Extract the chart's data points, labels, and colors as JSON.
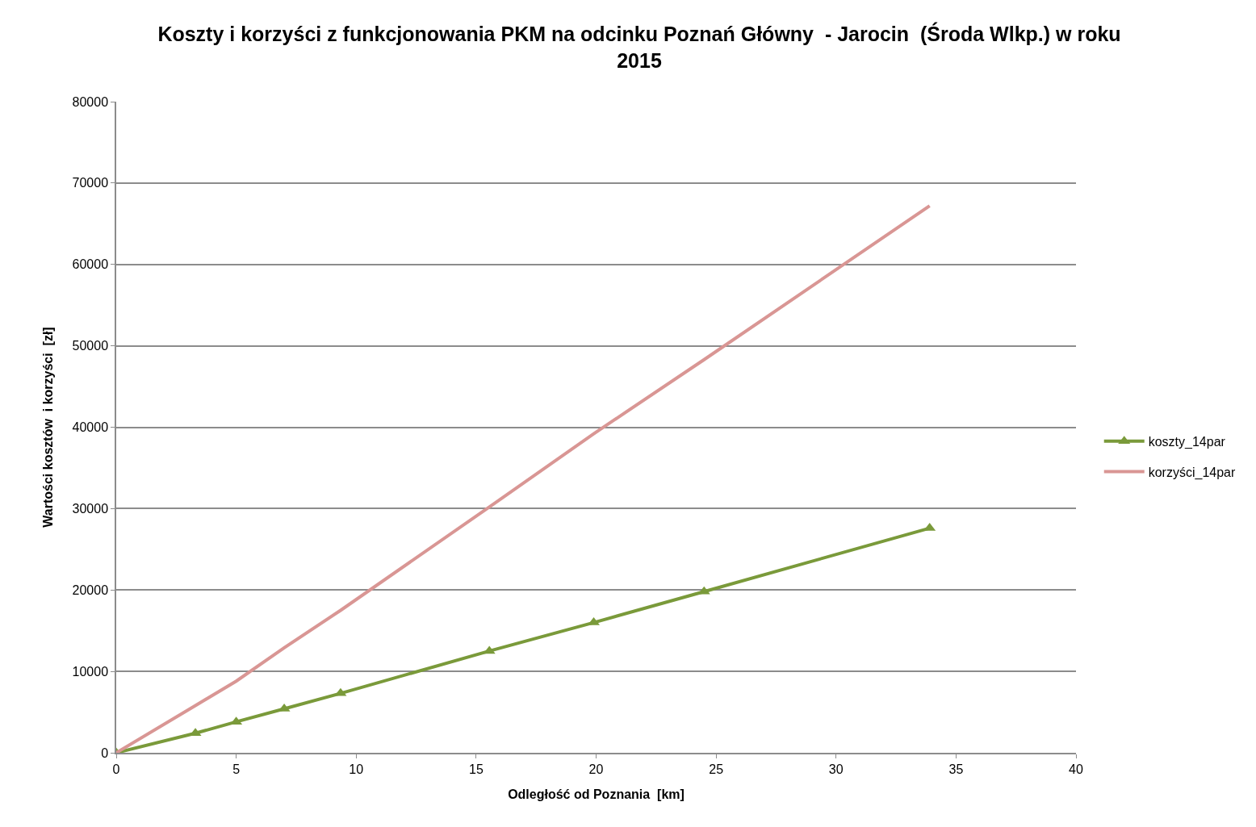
{
  "chart_data": {
    "type": "line",
    "title": "Koszty i korzyści z funkcjonowania PKM na odcinku Poznań Główny  - Jarocin  (Środa Wlkp.) w roku\n2015",
    "xlabel": "Odległość od Poznania  [km]",
    "ylabel": "Wartości kosztów  i korzyści  [zł]",
    "x": [
      0,
      3.3,
      5.0,
      7.0,
      9.35,
      15.55,
      19.9,
      24.5,
      33.9
    ],
    "series": [
      {
        "name": "koszty_14par",
        "color": "#7a9a3a",
        "marker": "triangle",
        "values": [
          0,
          2400,
          3800,
          5400,
          7300,
          12500,
          16000,
          19800,
          27600
        ]
      },
      {
        "name": "korzyści_14par",
        "color": "#d99694",
        "marker": "none",
        "values": [
          0,
          5800,
          8800,
          12900,
          17500,
          30200,
          39200,
          48300,
          67200
        ]
      }
    ],
    "xlim": [
      0,
      40
    ],
    "xticks": [
      0,
      5,
      10,
      15,
      20,
      25,
      30,
      35,
      40
    ],
    "ylim": [
      0,
      80000
    ],
    "yticks": [
      0,
      10000,
      20000,
      30000,
      40000,
      50000,
      60000,
      70000,
      80000
    ],
    "grid": "y",
    "legend": "right",
    "line_style": "solid"
  }
}
